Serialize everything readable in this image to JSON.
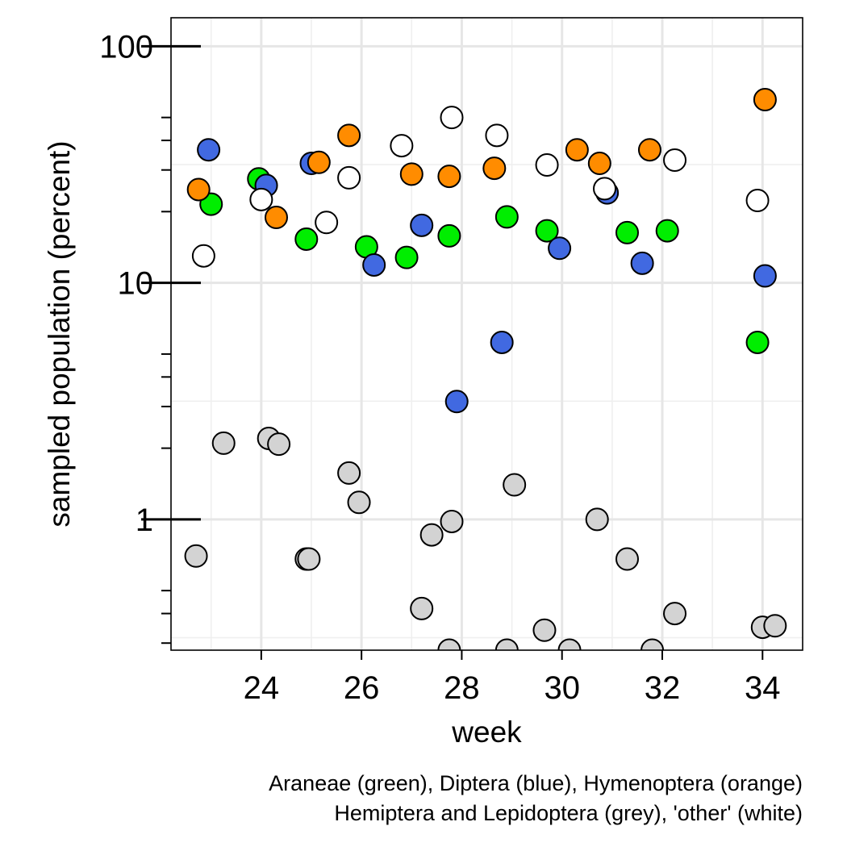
{
  "chart_data": {
    "type": "scatter",
    "title": "",
    "xlabel": "week",
    "ylabel": "sampled population (percent)",
    "y_scale": "log10",
    "xlim": [
      22.2,
      34.8
    ],
    "ylim": [
      0.28,
      132
    ],
    "x_ticks": [
      24,
      26,
      28,
      30,
      32,
      34
    ],
    "y_ticks": [
      1,
      10,
      100
    ],
    "y_tick_labels": [
      "1",
      "10",
      "100"
    ],
    "x_minor_grid": [
      23,
      25,
      27,
      29,
      31,
      33
    ],
    "y_minor_grid": [
      0.316,
      3.16,
      31.6
    ],
    "y_minor_ticks": [
      0.3,
      0.4,
      0.5,
      2,
      3,
      4,
      5,
      20,
      30,
      40,
      50
    ],
    "grid": true,
    "caption_lines": [
      "Araneae (green), Diptera (blue), Hymenoptera (orange)",
      "Hemiptera and Lepidoptera (grey), 'other' (white)"
    ],
    "series": [
      {
        "name": "Araneae",
        "color": "#00ee00",
        "points": [
          {
            "x": 23.0,
            "y": 21.5
          },
          {
            "x": 23.95,
            "y": 27.5
          },
          {
            "x": 24.9,
            "y": 15.3
          },
          {
            "x": 26.1,
            "y": 14.2
          },
          {
            "x": 26.9,
            "y": 12.8
          },
          {
            "x": 27.75,
            "y": 15.8
          },
          {
            "x": 28.9,
            "y": 19.0
          },
          {
            "x": 29.7,
            "y": 16.6
          },
          {
            "x": 31.3,
            "y": 16.3
          },
          {
            "x": 32.1,
            "y": 16.6
          },
          {
            "x": 33.9,
            "y": 5.6
          }
        ]
      },
      {
        "name": "Diptera",
        "color": "#4169e1",
        "points": [
          {
            "x": 22.95,
            "y": 36.5
          },
          {
            "x": 24.1,
            "y": 25.8
          },
          {
            "x": 25.0,
            "y": 32.0
          },
          {
            "x": 26.25,
            "y": 11.9
          },
          {
            "x": 27.2,
            "y": 17.5
          },
          {
            "x": 27.9,
            "y": 3.15
          },
          {
            "x": 28.8,
            "y": 5.6
          },
          {
            "x": 29.95,
            "y": 14.0
          },
          {
            "x": 30.9,
            "y": 24.0
          },
          {
            "x": 31.6,
            "y": 12.1
          },
          {
            "x": 34.05,
            "y": 10.7
          }
        ]
      },
      {
        "name": "Hymenoptera",
        "color": "#ff8c00",
        "points": [
          {
            "x": 22.75,
            "y": 24.8
          },
          {
            "x": 24.3,
            "y": 18.9
          },
          {
            "x": 25.15,
            "y": 32.3
          },
          {
            "x": 25.75,
            "y": 42.0
          },
          {
            "x": 27.0,
            "y": 28.8
          },
          {
            "x": 27.75,
            "y": 28.2
          },
          {
            "x": 28.65,
            "y": 30.5
          },
          {
            "x": 30.3,
            "y": 36.5
          },
          {
            "x": 30.75,
            "y": 32.0
          },
          {
            "x": 31.75,
            "y": 36.5
          },
          {
            "x": 34.05,
            "y": 59.5
          }
        ]
      },
      {
        "name": "Hemiptera and Lepidoptera",
        "color": "#d3d3d3",
        "points": [
          {
            "x": 22.7,
            "y": 0.7
          },
          {
            "x": 23.25,
            "y": 2.1
          },
          {
            "x": 24.15,
            "y": 2.2
          },
          {
            "x": 24.35,
            "y": 2.08
          },
          {
            "x": 24.9,
            "y": 0.68
          },
          {
            "x": 24.95,
            "y": 0.68
          },
          {
            "x": 25.75,
            "y": 1.57
          },
          {
            "x": 25.95,
            "y": 1.18
          },
          {
            "x": 27.2,
            "y": 0.42
          },
          {
            "x": 27.4,
            "y": 0.86
          },
          {
            "x": 27.8,
            "y": 0.98
          },
          {
            "x": 27.75,
            "y": 0.28
          },
          {
            "x": 29.05,
            "y": 1.4
          },
          {
            "x": 28.9,
            "y": 0.28
          },
          {
            "x": 29.65,
            "y": 0.34
          },
          {
            "x": 30.15,
            "y": 0.28
          },
          {
            "x": 30.7,
            "y": 1.0
          },
          {
            "x": 31.3,
            "y": 0.68
          },
          {
            "x": 31.8,
            "y": 0.28
          },
          {
            "x": 32.25,
            "y": 0.4
          },
          {
            "x": 34.0,
            "y": 0.35
          },
          {
            "x": 34.25,
            "y": 0.355
          }
        ]
      },
      {
        "name": "other",
        "color": "#ffffff",
        "points": [
          {
            "x": 22.85,
            "y": 13.0
          },
          {
            "x": 24.0,
            "y": 22.5
          },
          {
            "x": 25.3,
            "y": 18.0
          },
          {
            "x": 25.75,
            "y": 27.8
          },
          {
            "x": 26.8,
            "y": 38.0
          },
          {
            "x": 27.8,
            "y": 50.0
          },
          {
            "x": 28.7,
            "y": 42.0
          },
          {
            "x": 29.7,
            "y": 31.5
          },
          {
            "x": 30.85,
            "y": 25.0
          },
          {
            "x": 32.25,
            "y": 33.0
          },
          {
            "x": 33.9,
            "y": 22.3
          }
        ]
      }
    ]
  }
}
